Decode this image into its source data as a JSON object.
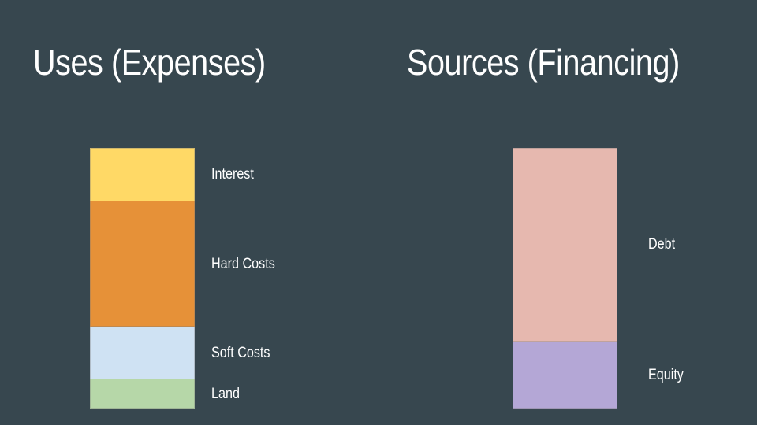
{
  "uses": {
    "title": "Uses (Expenses)",
    "segments": [
      {
        "label": "Interest",
        "share": 0.205,
        "color": "#ffd966"
      },
      {
        "label": "Hard Costs",
        "share": 0.48,
        "color": "#e69138"
      },
      {
        "label": "Soft Costs",
        "share": 0.2,
        "color": "#cfe2f3"
      },
      {
        "label": "Land",
        "share": 0.115,
        "color": "#b6d7a8"
      }
    ]
  },
  "sources": {
    "title": "Sources (Financing)",
    "segments": [
      {
        "label": "Debt",
        "share": 0.74,
        "color": "#e6b8af"
      },
      {
        "label": "Equity",
        "share": 0.26,
        "color": "#b4a7d6"
      }
    ]
  }
}
